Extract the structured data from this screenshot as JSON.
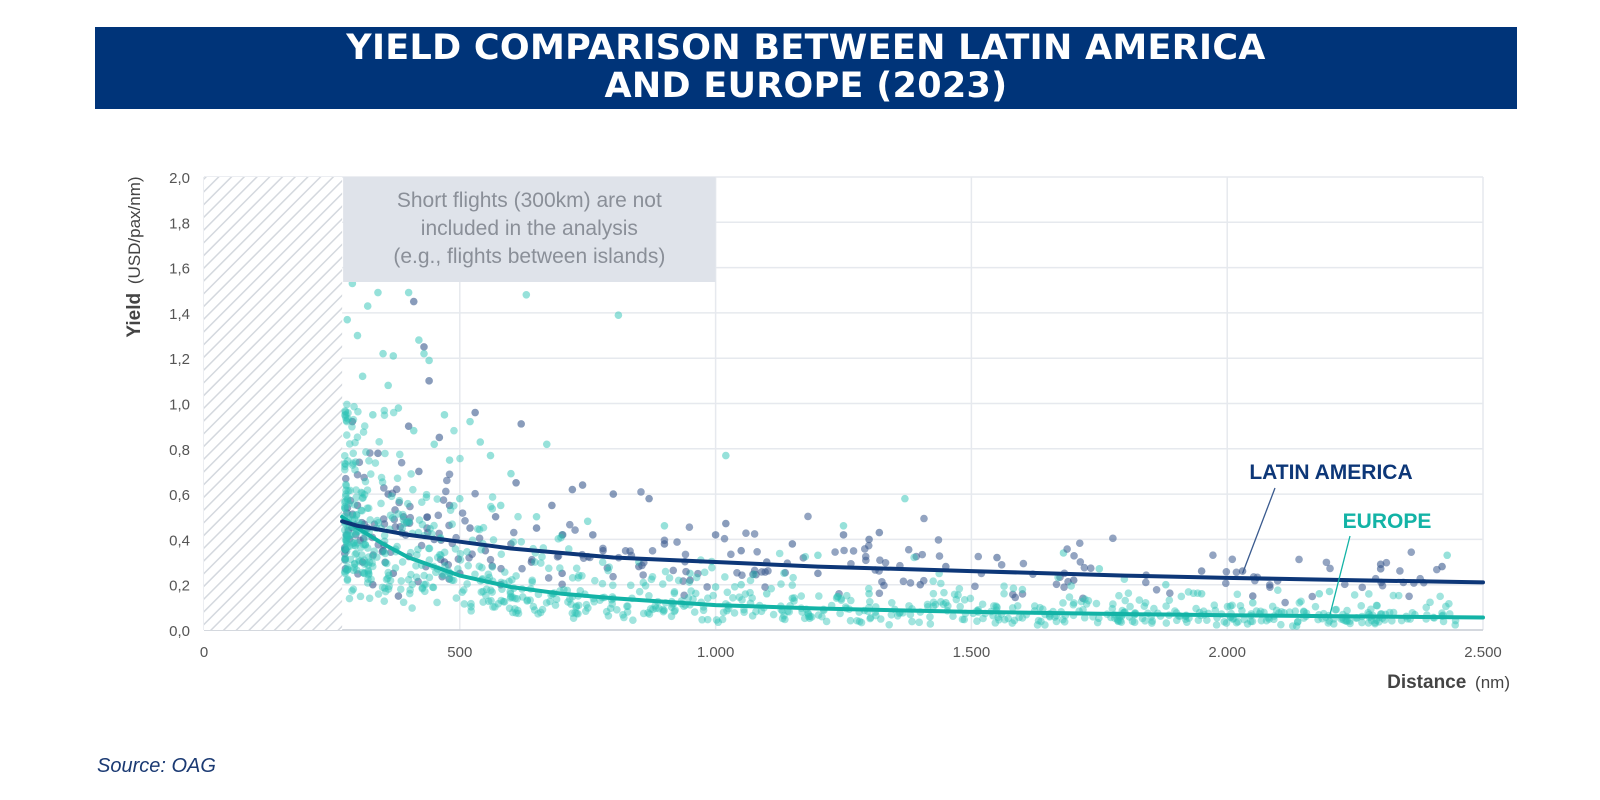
{
  "title": {
    "line1": "YIELD COMPARISON BETWEEN LATIN AMERICA",
    "line2": "AND EUROPE (2023)"
  },
  "source": "Source: OAG",
  "colors": {
    "banner": "#003479",
    "latin_america": "#0d3778",
    "europe": "#13b3a6",
    "latam_points": "#3a5a8e",
    "europe_points": "#2ec4b6",
    "note_box": "#dfe3ea"
  },
  "chart_data": {
    "type": "scatter",
    "x_axis": {
      "label_bold": "Distance",
      "label_unit": "(nm)",
      "range": [
        0,
        2500
      ],
      "ticks": [
        0,
        500,
        1000,
        1500,
        2000,
        2500
      ],
      "tick_labels": [
        "0",
        "500",
        "1.000",
        "1.500",
        "2.000",
        "2.500"
      ]
    },
    "y_axis": {
      "label_bold": "Yield",
      "label_unit": "(USD/pax/nm)",
      "range": [
        0,
        2.0
      ],
      "ticks": [
        0,
        0.2,
        0.4,
        0.6,
        0.8,
        1.0,
        1.2,
        1.4,
        1.6,
        1.8,
        2.0
      ],
      "tick_labels": [
        "0,0",
        "0,2",
        "0,4",
        "0,6",
        "0,8",
        "1,0",
        "1,2",
        "1,4",
        "1,6",
        "1,8",
        "2,0"
      ]
    },
    "grid": true,
    "excluded_region": {
      "x_range": [
        0,
        270
      ]
    },
    "note": {
      "line1": "Short flights (300km) are not",
      "line2": "included in the analysis",
      "line3": "(e.g., flights between islands)"
    },
    "series": [
      {
        "name": "LATIN AMERICA",
        "trend": [
          [
            270,
            0.48
          ],
          [
            300,
            0.46
          ],
          [
            350,
            0.44
          ],
          [
            400,
            0.42
          ],
          [
            500,
            0.39
          ],
          [
            600,
            0.36
          ],
          [
            700,
            0.34
          ],
          [
            800,
            0.32
          ],
          [
            1000,
            0.3
          ],
          [
            1200,
            0.28
          ],
          [
            1500,
            0.26
          ],
          [
            1800,
            0.24
          ],
          [
            2000,
            0.23
          ],
          [
            2250,
            0.22
          ],
          [
            2500,
            0.21
          ]
        ],
        "points": [
          [
            290,
            0.92
          ],
          [
            300,
            0.55
          ],
          [
            310,
            0.3
          ],
          [
            320,
            0.45
          ],
          [
            330,
            0.2
          ],
          [
            340,
            0.78
          ],
          [
            350,
            0.35
          ],
          [
            360,
            0.6
          ],
          [
            370,
            0.25
          ],
          [
            380,
            0.15
          ],
          [
            390,
            0.5
          ],
          [
            400,
            0.9
          ],
          [
            410,
            1.45
          ],
          [
            420,
            0.7
          ],
          [
            430,
            1.25
          ],
          [
            440,
            1.1
          ],
          [
            450,
            0.4
          ],
          [
            460,
            0.85
          ],
          [
            470,
            0.3
          ],
          [
            480,
            0.55
          ],
          [
            500,
            0.25
          ],
          [
            520,
            0.45
          ],
          [
            530,
            0.96
          ],
          [
            550,
            0.35
          ],
          [
            570,
            0.5
          ],
          [
            580,
            0.2
          ],
          [
            600,
            0.38
          ],
          [
            610,
            0.65
          ],
          [
            620,
            0.91
          ],
          [
            640,
            0.3
          ],
          [
            650,
            0.45
          ],
          [
            680,
            0.55
          ],
          [
            700,
            0.25
          ],
          [
            720,
            0.62
          ],
          [
            740,
            0.64
          ],
          [
            760,
            0.42
          ],
          [
            780,
            0.35
          ],
          [
            800,
            0.6
          ],
          [
            850,
            0.28
          ],
          [
            870,
            0.58
          ],
          [
            900,
            0.38
          ],
          [
            950,
            0.22
          ],
          [
            1000,
            0.42
          ],
          [
            1020,
            0.47
          ],
          [
            1050,
            0.35
          ],
          [
            1100,
            0.3
          ],
          [
            1150,
            0.38
          ],
          [
            1200,
            0.25
          ],
          [
            1250,
            0.42
          ],
          [
            1300,
            0.4
          ],
          [
            1320,
            0.43
          ],
          [
            1400,
            0.2
          ],
          [
            1450,
            0.28
          ],
          [
            1550,
            0.32
          ],
          [
            1700,
            0.22
          ],
          [
            1950,
            0.26
          ],
          [
            2030,
            0.26
          ],
          [
            2050,
            0.15
          ],
          [
            2300,
            0.27
          ],
          [
            2300,
            0.29
          ],
          [
            2420,
            0.28
          ]
        ]
      },
      {
        "name": "EUROPE",
        "trend": [
          [
            270,
            0.5
          ],
          [
            300,
            0.45
          ],
          [
            350,
            0.38
          ],
          [
            400,
            0.32
          ],
          [
            500,
            0.24
          ],
          [
            600,
            0.19
          ],
          [
            700,
            0.16
          ],
          [
            800,
            0.14
          ],
          [
            1000,
            0.11
          ],
          [
            1200,
            0.095
          ],
          [
            1500,
            0.08
          ],
          [
            1800,
            0.07
          ],
          [
            2000,
            0.065
          ],
          [
            2250,
            0.06
          ],
          [
            2500,
            0.055
          ]
        ],
        "points": [
          [
            280,
            1.37
          ],
          [
            290,
            1.53
          ],
          [
            300,
            1.3
          ],
          [
            310,
            1.12
          ],
          [
            320,
            1.43
          ],
          [
            330,
            0.95
          ],
          [
            340,
            1.49
          ],
          [
            350,
            1.22
          ],
          [
            360,
            1.08
          ],
          [
            370,
            1.21
          ],
          [
            380,
            0.98
          ],
          [
            400,
            1.49
          ],
          [
            410,
            0.88
          ],
          [
            420,
            1.28
          ],
          [
            430,
            1.22
          ],
          [
            440,
            1.19
          ],
          [
            450,
            0.82
          ],
          [
            470,
            0.95
          ],
          [
            480,
            0.75
          ],
          [
            500,
            0.58
          ],
          [
            520,
            0.92
          ],
          [
            540,
            0.83
          ],
          [
            560,
            0.77
          ],
          [
            580,
            0.55
          ],
          [
            600,
            0.69
          ],
          [
            630,
            1.48
          ],
          [
            650,
            0.5
          ],
          [
            670,
            0.82
          ],
          [
            700,
            0.42
          ],
          [
            750,
            0.48
          ],
          [
            810,
            1.39
          ],
          [
            850,
            0.3
          ],
          [
            900,
            0.46
          ],
          [
            950,
            0.25
          ],
          [
            1000,
            0.19
          ],
          [
            1020,
            0.77
          ],
          [
            1050,
            0.2
          ],
          [
            1100,
            0.16
          ],
          [
            1150,
            0.14
          ],
          [
            1200,
            0.33
          ],
          [
            1250,
            0.46
          ],
          [
            1300,
            0.16
          ],
          [
            1370,
            0.58
          ],
          [
            1450,
            0.12
          ],
          [
            1550,
            0.1
          ],
          [
            1680,
            0.34
          ],
          [
            1750,
            0.27
          ],
          [
            1800,
            0.08
          ],
          [
            1880,
            0.2
          ],
          [
            1950,
            0.16
          ],
          [
            2050,
            0.12
          ],
          [
            2150,
            0.08
          ],
          [
            2180,
            0.16
          ],
          [
            2200,
            0.17
          ],
          [
            2300,
            0.07
          ],
          [
            2350,
            0.06
          ],
          [
            2430,
            0.33
          ]
        ]
      }
    ]
  }
}
